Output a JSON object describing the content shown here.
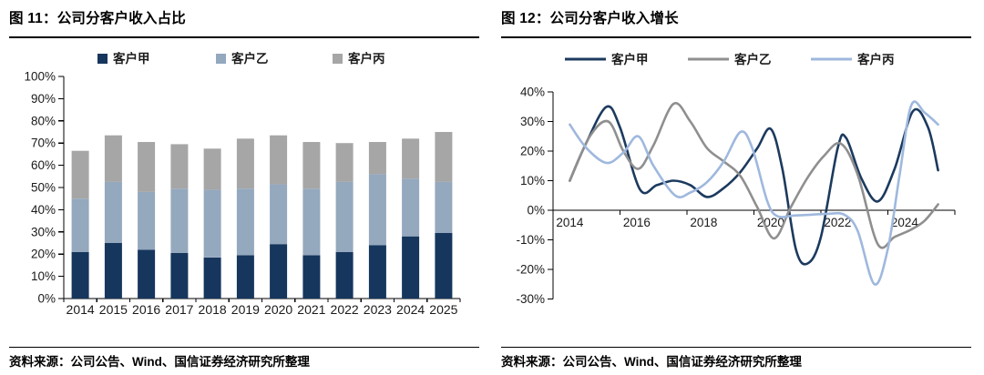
{
  "left_panel": {
    "title": "图 11：公司分客户收入占比",
    "source": "资料来源：公司公告、Wind、国信证券经济研究所整理"
  },
  "right_panel": {
    "title": "图 12：公司分客户收入增长",
    "source": "资料来源：公司公告、Wind、国信证券经济研究所整理"
  },
  "chart_data": [
    {
      "type": "bar",
      "stacked": true,
      "title": "公司分客户收入占比",
      "unit": "%",
      "categories": [
        "2014",
        "2015",
        "2016",
        "2017",
        "2018",
        "2019",
        "2020",
        "2021",
        "2022",
        "2023",
        "2024",
        "2025"
      ],
      "series": [
        {
          "name": "客户甲",
          "color": "#16365D",
          "values": [
            21,
            25,
            22,
            20.5,
            18.5,
            19.5,
            24.5,
            19.5,
            21,
            24,
            28,
            29.5
          ]
        },
        {
          "name": "客户乙",
          "color": "#94A8BE",
          "values": [
            24,
            27.5,
            26,
            29,
            30.5,
            30,
            27,
            30,
            31.5,
            32,
            26,
            23
          ]
        },
        {
          "name": "客户丙",
          "color": "#A6A6A6",
          "values": [
            21.5,
            21,
            22.5,
            20,
            18.5,
            22.5,
            22,
            21,
            17.5,
            14.5,
            18,
            22.5
          ]
        }
      ],
      "ylim": [
        0,
        100
      ],
      "yticks": [
        "0%",
        "10%",
        "20%",
        "30%",
        "40%",
        "50%",
        "60%",
        "70%",
        "80%",
        "90%",
        "100%"
      ],
      "legend_position": "top",
      "grid": false
    },
    {
      "type": "line",
      "title": "公司分客户收入增长",
      "unit": "%",
      "x_range": [
        2014,
        2025
      ],
      "ylim": [
        -30,
        40
      ],
      "yticks": [
        "40%",
        "30%",
        "20%",
        "10%",
        "0%",
        "-10%",
        "-20%",
        "-30%"
      ],
      "xticks": [
        "2014",
        "2016",
        "2018",
        "2020",
        "2022",
        "2024"
      ],
      "legend_position": "top",
      "grid": false,
      "series": [
        {
          "name": "客户甲",
          "color": "#1C3A5E",
          "points": [
            [
              2014,
              10
            ],
            [
              2014.5,
              23
            ],
            [
              2015.1,
              35
            ],
            [
              2015.5,
              28
            ],
            [
              2016.1,
              7
            ],
            [
              2016.6,
              8.5
            ],
            [
              2017.1,
              10
            ],
            [
              2017.6,
              8.5
            ],
            [
              2018.1,
              4.5
            ],
            [
              2018.6,
              7.5
            ],
            [
              2019.1,
              13
            ],
            [
              2019.6,
              21
            ],
            [
              2020,
              27.5
            ],
            [
              2020.35,
              14
            ],
            [
              2020.75,
              -13
            ],
            [
              2021.1,
              -18
            ],
            [
              2021.5,
              -9
            ],
            [
              2022,
              21
            ],
            [
              2022.25,
              24.5
            ],
            [
              2022.7,
              11
            ],
            [
              2023.2,
              3
            ],
            [
              2023.7,
              14
            ],
            [
              2024.25,
              33.5
            ],
            [
              2024.7,
              28
            ],
            [
              2025,
              13.5
            ]
          ]
        },
        {
          "name": "客户乙",
          "color": "#8F8F8F",
          "points": [
            [
              2014,
              10
            ],
            [
              2014.6,
              25
            ],
            [
              2015.15,
              30
            ],
            [
              2015.6,
              20
            ],
            [
              2016.05,
              14
            ],
            [
              2016.5,
              22
            ],
            [
              2017.1,
              36
            ],
            [
              2017.6,
              30
            ],
            [
              2018.1,
              21
            ],
            [
              2018.6,
              16.5
            ],
            [
              2019.1,
              11.5
            ],
            [
              2019.6,
              1
            ],
            [
              2020.1,
              -9.5
            ],
            [
              2020.6,
              1
            ],
            [
              2021.1,
              11
            ],
            [
              2021.6,
              18.5
            ],
            [
              2022.1,
              22.5
            ],
            [
              2022.6,
              12
            ],
            [
              2023.2,
              -11.5
            ],
            [
              2023.7,
              -9
            ],
            [
              2024.2,
              -6.5
            ],
            [
              2024.6,
              -3.5
            ],
            [
              2025,
              2
            ]
          ]
        },
        {
          "name": "客户丙",
          "color": "#9FB8DE",
          "points": [
            [
              2014,
              29
            ],
            [
              2014.5,
              21
            ],
            [
              2015.1,
              16
            ],
            [
              2015.6,
              19.5
            ],
            [
              2016.05,
              25
            ],
            [
              2016.5,
              15
            ],
            [
              2017.15,
              5
            ],
            [
              2017.6,
              6
            ],
            [
              2018.1,
              9.5
            ],
            [
              2018.6,
              16.5
            ],
            [
              2019.1,
              26.5
            ],
            [
              2019.45,
              21
            ],
            [
              2019.9,
              3
            ],
            [
              2020.2,
              -2
            ],
            [
              2020.7,
              -1.8
            ],
            [
              2021.2,
              -1.5
            ],
            [
              2021.7,
              -1.2
            ],
            [
              2022.2,
              -1.5
            ],
            [
              2022.6,
              -7
            ],
            [
              2023.1,
              -25
            ],
            [
              2023.5,
              -13
            ],
            [
              2023.85,
              12
            ],
            [
              2024.2,
              35.5
            ],
            [
              2024.6,
              33
            ],
            [
              2025,
              29
            ]
          ]
        }
      ]
    }
  ]
}
